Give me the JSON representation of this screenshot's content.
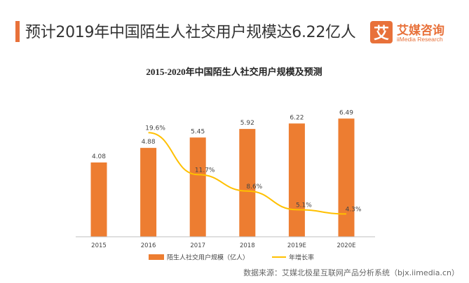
{
  "header": {
    "title": "预计2019年中国陌生人社交用户规模达6.22亿人"
  },
  "logo": {
    "mark": "艾",
    "name_cn": "艾媒咨询",
    "name_en": "iiMedia Research"
  },
  "source": "数据来源：艾媒北极星互联网产品分析系统（bjx.iimedia.cn）",
  "colors": {
    "bar": "#ed7d31",
    "line": "#ffc000",
    "accent": "#e8713a"
  },
  "chart_data": {
    "type": "bar",
    "title": "2015-2020年中国陌生人社交用户规模及预测",
    "categories": [
      "2015",
      "2016",
      "2017",
      "2018",
      "2019E",
      "2020E"
    ],
    "series": [
      {
        "name": "陌生人社交用户规模（亿人）",
        "type": "bar",
        "values": [
          4.08,
          4.88,
          5.45,
          5.92,
          6.22,
          6.49
        ],
        "labels": [
          "4.08",
          "4.88",
          "5.45",
          "5.92",
          "6.22",
          "6.49"
        ]
      },
      {
        "name": "年增长率",
        "type": "line",
        "values": [
          null,
          19.6,
          11.7,
          8.6,
          5.1,
          4.3
        ],
        "labels": [
          "",
          "19.6%",
          "11.7%",
          "8.6%",
          "5.1%",
          "4.3%"
        ]
      }
    ],
    "ylim": [
      0,
      7
    ],
    "y2lim": [
      0,
      24
    ],
    "legend": "bottom",
    "grid": false
  }
}
